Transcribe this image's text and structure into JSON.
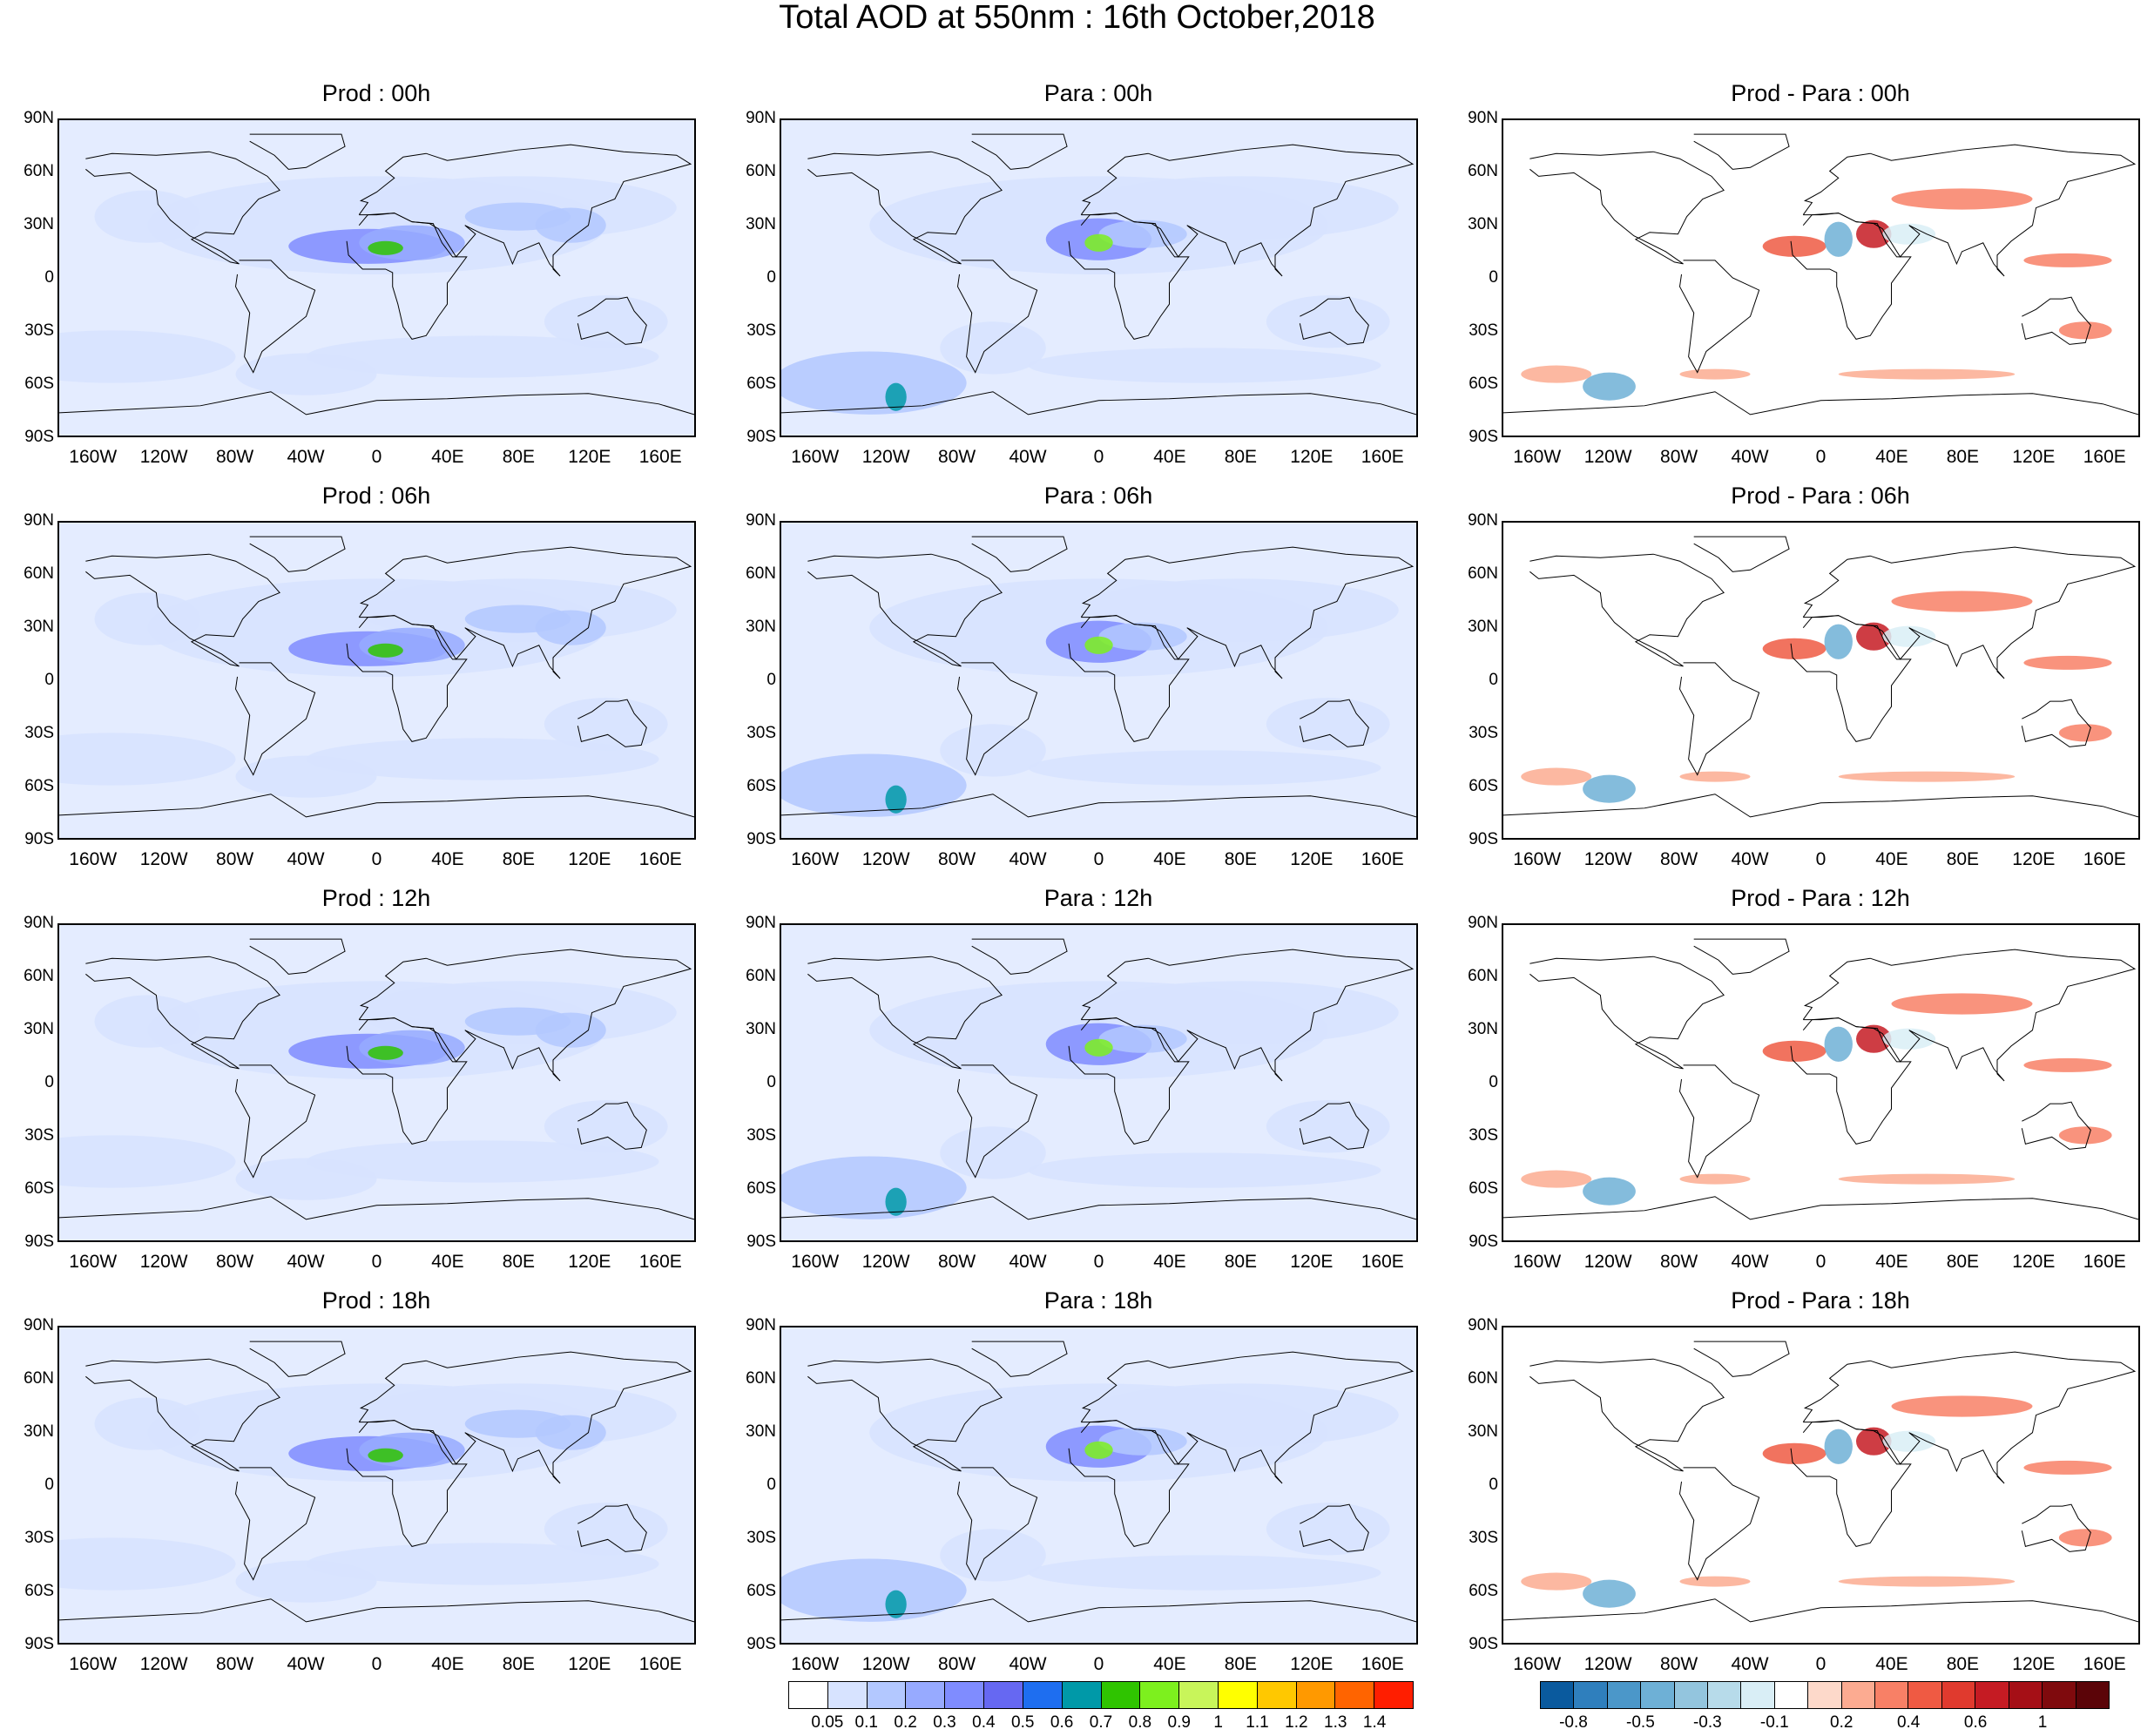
{
  "title": "Total AOD at 550nm : 16th October,2018",
  "panels": [
    {
      "title": "Prod : 00h",
      "kind": "prod"
    },
    {
      "title": "Para : 00h",
      "kind": "para"
    },
    {
      "title": "Prod - Para : 00h",
      "kind": "diff"
    },
    {
      "title": "Prod : 06h",
      "kind": "prod"
    },
    {
      "title": "Para : 06h",
      "kind": "para"
    },
    {
      "title": "Prod - Para : 06h",
      "kind": "diff"
    },
    {
      "title": "Prod : 12h",
      "kind": "prod"
    },
    {
      "title": "Para : 12h",
      "kind": "para"
    },
    {
      "title": "Prod - Para : 12h",
      "kind": "diff"
    },
    {
      "title": "Prod : 18h",
      "kind": "prod"
    },
    {
      "title": "Para : 18h",
      "kind": "para"
    },
    {
      "title": "Prod - Para : 18h",
      "kind": "diff"
    }
  ],
  "lat_labels": [
    "90N",
    "60N",
    "30N",
    "0",
    "30S",
    "60S",
    "90S"
  ],
  "lon_labels": [
    "160W",
    "120W",
    "80W",
    "40W",
    "0",
    "40E",
    "80E",
    "120E",
    "160E"
  ],
  "aod_colorbar": {
    "labels": [
      "0.05",
      "0.1",
      "0.2",
      "0.3",
      "0.4",
      "0.5",
      "0.6",
      "0.7",
      "0.8",
      "0.9",
      "1",
      "1.1",
      "1.2",
      "1.3",
      "1.4"
    ],
    "colors": [
      "#ffffff",
      "#d7e3ff",
      "#b3c8ff",
      "#97aaff",
      "#7f8cff",
      "#6668f2",
      "#1e6ef0",
      "#0099a8",
      "#2fc400",
      "#7df01e",
      "#c8f55a",
      "#ffff00",
      "#ffc800",
      "#ff9900",
      "#ff6400",
      "#ff1e00"
    ]
  },
  "diff_colorbar": {
    "labels": [
      "-0.8",
      "-0.5",
      "-0.3",
      "-0.1",
      "0.2",
      "0.4",
      "0.6",
      "1"
    ],
    "label_ticks": [
      1,
      3,
      5,
      7,
      9,
      11,
      13,
      15
    ],
    "colors": [
      "#0a5a9e",
      "#2f7fbd",
      "#4b97c9",
      "#6eb0d6",
      "#93c5de",
      "#b7dbea",
      "#d9eef6",
      "#ffffff",
      "#fdd9ca",
      "#fcab91",
      "#f88066",
      "#ef5a43",
      "#e03a2e",
      "#c51b23",
      "#a50f16",
      "#7f0a0d",
      "#5b0408"
    ]
  }
}
